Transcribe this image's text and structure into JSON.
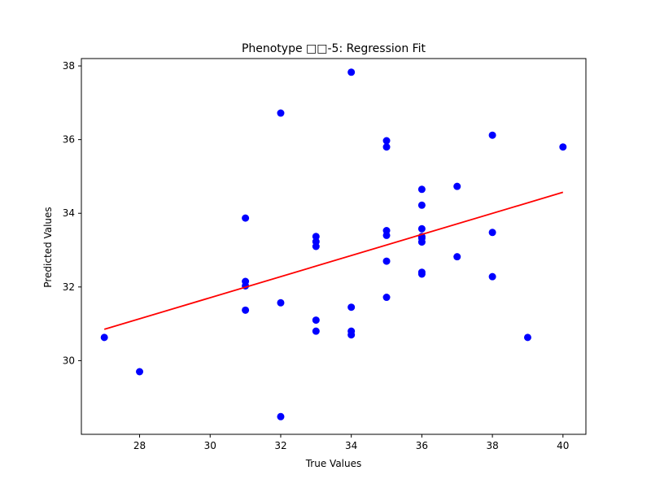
{
  "chart_data": {
    "type": "scatter",
    "title": "Phenotype  □□-5: Regression Fit",
    "xlabel": "True Values",
    "ylabel": "Predicted Values",
    "xlim": [
      26.35,
      40.65
    ],
    "ylim": [
      28.0,
      38.2
    ],
    "xticks": [
      28,
      30,
      32,
      34,
      36,
      38,
      40
    ],
    "yticks": [
      30,
      32,
      34,
      36,
      38
    ],
    "grid": false,
    "point_color": "#0000ff",
    "line_color": "#ff0000",
    "series": [
      {
        "type": "scatter",
        "points": [
          [
            27,
            30.63
          ],
          [
            28,
            29.7
          ],
          [
            31,
            33.87
          ],
          [
            31,
            32.15
          ],
          [
            31,
            32.03
          ],
          [
            31,
            31.37
          ],
          [
            32,
            36.72
          ],
          [
            32,
            31.57
          ],
          [
            32,
            28.48
          ],
          [
            33,
            33.37
          ],
          [
            33,
            33.23
          ],
          [
            33,
            33.1
          ],
          [
            33,
            31.1
          ],
          [
            33,
            30.8
          ],
          [
            34,
            37.83
          ],
          [
            34,
            31.45
          ],
          [
            34,
            30.8
          ],
          [
            34,
            30.7
          ],
          [
            35,
            35.97
          ],
          [
            35,
            35.8
          ],
          [
            35,
            33.53
          ],
          [
            35,
            33.4
          ],
          [
            35,
            32.7
          ],
          [
            35,
            31.72
          ],
          [
            36,
            34.65
          ],
          [
            36,
            34.22
          ],
          [
            36,
            33.58
          ],
          [
            36,
            33.37
          ],
          [
            36,
            33.32
          ],
          [
            36,
            33.22
          ],
          [
            36,
            32.4
          ],
          [
            36,
            32.35
          ],
          [
            37,
            34.73
          ],
          [
            37,
            32.82
          ],
          [
            38,
            36.12
          ],
          [
            38,
            33.48
          ],
          [
            38,
            32.28
          ],
          [
            39,
            30.63
          ],
          [
            40,
            35.8
          ]
        ]
      },
      {
        "type": "line",
        "points": [
          [
            27,
            30.85
          ],
          [
            40,
            34.57
          ]
        ]
      }
    ]
  }
}
